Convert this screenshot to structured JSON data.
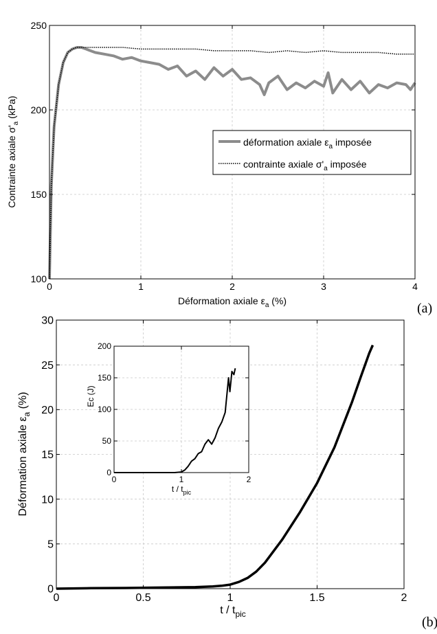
{
  "chart_data": [
    {
      "id": "a",
      "type": "line",
      "panel_label": "(a)",
      "xlabel": "Déformation axiale ε",
      "xlabel_sub": "a",
      "xlabel_suffix": " (%)",
      "ylabel": "Contrainte axiale σ'",
      "ylabel_sub": "a",
      "ylabel_suffix": " (kPa)",
      "xlim": [
        0,
        4
      ],
      "ylim": [
        100,
        250
      ],
      "xticks": [
        0,
        1,
        2,
        3,
        4
      ],
      "yticks": [
        100,
        150,
        200,
        250
      ],
      "grid": true,
      "legend_position": "center-right",
      "series": [
        {
          "name": "déformation axiale ε",
          "name_sub": "a",
          "name_suffix": " imposée",
          "color": "#8c8c8c",
          "style": "solid-thick",
          "x": [
            0,
            0.02,
            0.05,
            0.1,
            0.15,
            0.2,
            0.25,
            0.3,
            0.35,
            0.4,
            0.5,
            0.6,
            0.7,
            0.8,
            0.9,
            1.0,
            1.1,
            1.2,
            1.3,
            1.4,
            1.5,
            1.6,
            1.7,
            1.8,
            1.9,
            2.0,
            2.1,
            2.2,
            2.3,
            2.35,
            2.4,
            2.5,
            2.6,
            2.7,
            2.8,
            2.9,
            3.0,
            3.05,
            3.1,
            3.2,
            3.3,
            3.4,
            3.5,
            3.6,
            3.7,
            3.8,
            3.9,
            3.95,
            4.0
          ],
          "y": [
            100,
            155,
            190,
            215,
            228,
            234,
            236,
            237,
            237,
            236,
            234,
            233,
            232,
            230,
            231,
            229,
            228,
            227,
            224,
            226,
            220,
            223,
            218,
            225,
            220,
            224,
            218,
            219,
            215,
            209,
            216,
            220,
            212,
            216,
            213,
            217,
            214,
            222,
            210,
            218,
            212,
            217,
            210,
            215,
            213,
            216,
            215,
            212,
            216
          ]
        },
        {
          "name": "contrainte axiale σ'",
          "name_sub": "a",
          "name_suffix": " imposée",
          "color": "#000000",
          "style": "dotted",
          "x": [
            0,
            0.02,
            0.05,
            0.1,
            0.15,
            0.2,
            0.25,
            0.3,
            0.35,
            0.4,
            0.6,
            0.8,
            1.0,
            1.2,
            1.4,
            1.6,
            1.8,
            2.0,
            2.2,
            2.4,
            2.6,
            2.8,
            3.0,
            3.2,
            3.4,
            3.6,
            3.8,
            4.0
          ],
          "y": [
            100,
            155,
            190,
            215,
            228,
            234,
            236,
            237,
            237,
            237,
            237,
            237,
            236,
            236,
            236,
            236,
            235,
            235,
            235,
            234,
            235,
            234,
            235,
            234,
            234,
            234,
            233,
            233
          ]
        }
      ]
    },
    {
      "id": "b",
      "type": "line",
      "panel_label": "(b)",
      "xlabel": "t / t",
      "xlabel_sub": "pic",
      "ylabel": "Déformation axiale  ε",
      "ylabel_sub": "a",
      "ylabel_suffix": " (%)",
      "xlim": [
        0,
        2
      ],
      "ylim": [
        0,
        30
      ],
      "xticks": [
        0,
        0.5,
        1,
        1.5,
        2
      ],
      "xtick_labels": [
        "0",
        "0.5",
        "1",
        "1.5",
        "2"
      ],
      "yticks": [
        0,
        5,
        10,
        15,
        20,
        25,
        30
      ],
      "grid": true,
      "series": [
        {
          "color": "#000000",
          "x": [
            0,
            0.2,
            0.4,
            0.6,
            0.8,
            0.9,
            0.95,
            1.0,
            1.05,
            1.1,
            1.15,
            1.2,
            1.3,
            1.4,
            1.5,
            1.6,
            1.7,
            1.75,
            1.8,
            1.82
          ],
          "y": [
            0,
            0.05,
            0.08,
            0.12,
            0.18,
            0.25,
            0.32,
            0.45,
            0.75,
            1.2,
            1.9,
            2.9,
            5.5,
            8.5,
            11.8,
            15.8,
            20.8,
            23.6,
            26.3,
            27.2
          ]
        }
      ],
      "inset": {
        "type": "line",
        "xlabel": "t / t",
        "xlabel_sub": "pic",
        "ylabel": "Ec (J)",
        "xlim": [
          0,
          2
        ],
        "ylim": [
          0,
          200
        ],
        "xticks": [
          0,
          1,
          2
        ],
        "yticks": [
          0,
          50,
          100,
          150,
          200
        ],
        "grid": true,
        "series": [
          {
            "color": "#000000",
            "x": [
              0,
              0.5,
              0.9,
              1.0,
              1.05,
              1.1,
              1.15,
              1.2,
              1.25,
              1.3,
              1.35,
              1.4,
              1.45,
              1.5,
              1.55,
              1.6,
              1.65,
              1.7,
              1.72,
              1.75,
              1.78,
              1.8
            ],
            "y": [
              0,
              0,
              0,
              1,
              4,
              10,
              18,
              22,
              30,
              33,
              45,
              52,
              45,
              55,
              70,
              80,
              95,
              150,
              128,
              160,
              155,
              165
            ]
          }
        ]
      }
    }
  ]
}
